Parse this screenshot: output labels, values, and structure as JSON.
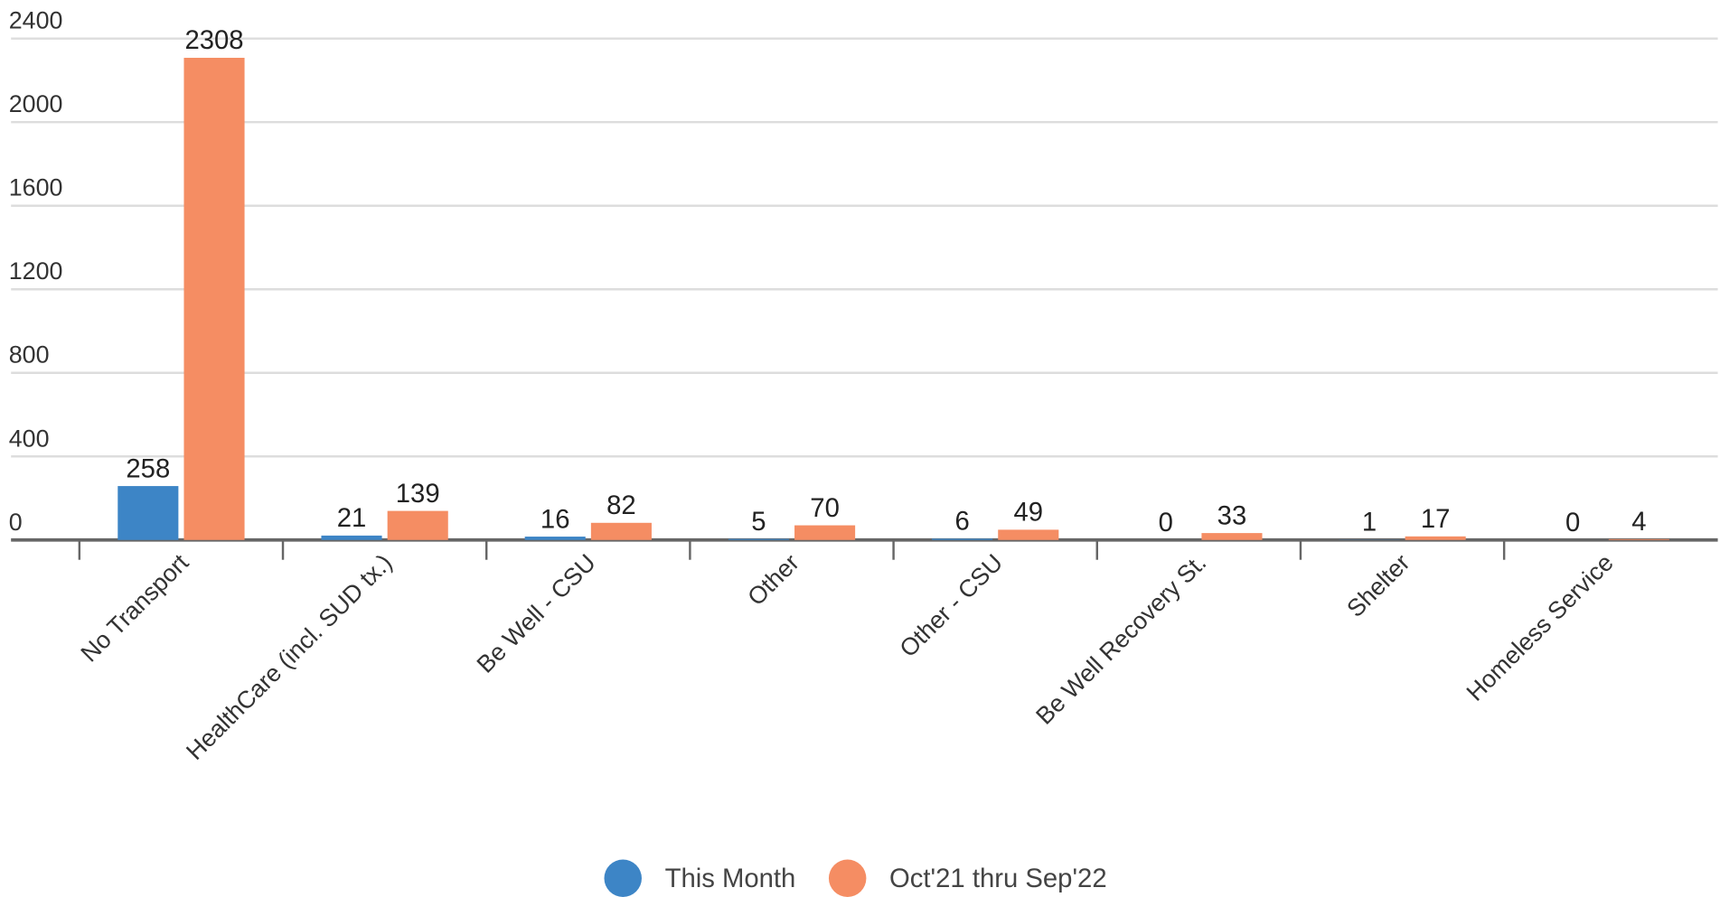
{
  "chart_data": {
    "type": "bar",
    "categories": [
      "No Transport",
      "HealthCare (incl. SUD tx.)",
      "Be Well - CSU",
      "Other",
      "Other - CSU",
      "Be Well Recovery St.",
      "Shelter",
      "Homeless Service"
    ],
    "series": [
      {
        "name": "This Month",
        "color": "#3d85c6",
        "values": [
          258,
          21,
          16,
          5,
          6,
          0,
          1,
          0
        ]
      },
      {
        "name": "Oct'21 thru Sep'22",
        "color": "#f58d63",
        "values": [
          2308,
          139,
          82,
          70,
          49,
          33,
          17,
          4
        ]
      }
    ],
    "ylim": [
      0,
      2400
    ],
    "yticks": [
      0,
      400,
      800,
      1200,
      1600,
      2000,
      2400
    ],
    "grid": true,
    "legend": "bottom"
  }
}
